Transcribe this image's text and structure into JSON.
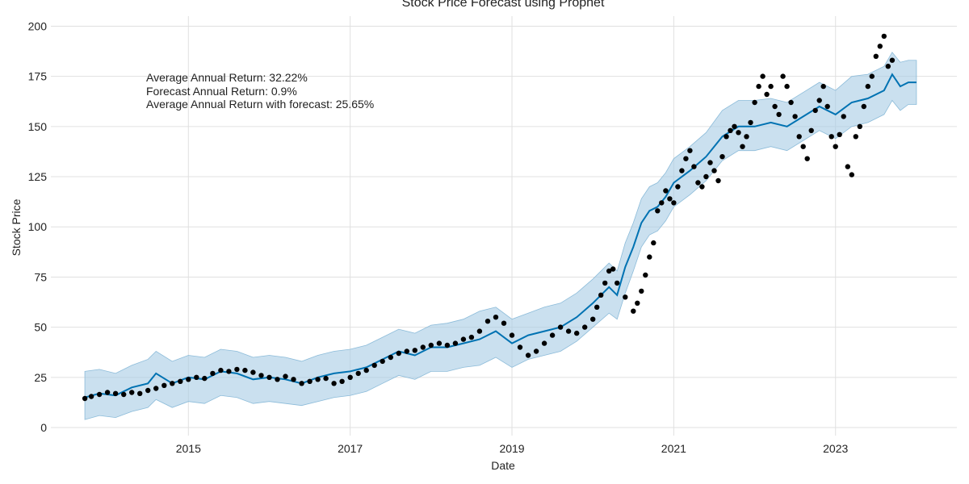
{
  "chart_data": {
    "type": "line",
    "title": "Stock Price Forecast using Prophet",
    "xlabel": "Date",
    "ylabel": "Stock Price",
    "xlim": [
      2013.3,
      2024.5
    ],
    "ylim": [
      -4,
      205
    ],
    "x_ticks": [
      2015,
      2017,
      2019,
      2021,
      2023
    ],
    "y_ticks": [
      0,
      25,
      50,
      75,
      100,
      125,
      150,
      175,
      200
    ],
    "grid": true,
    "colors": {
      "forecast": "#0072b2",
      "band": "#a6cce4",
      "actual": "#000000",
      "grid": "#e0e0e0"
    },
    "annotations": [
      "Average Annual Return: 32.22%",
      "Forecast Annual Return: 0.9%",
      "Average Annual Return with forecast: 25.65%"
    ],
    "series": [
      {
        "kind": "actual",
        "x": [
          2013.72,
          2013.8,
          2013.9,
          2014.0,
          2014.1,
          2014.2,
          2014.3,
          2014.4,
          2014.5,
          2014.6,
          2014.7,
          2014.8,
          2014.9,
          2015.0,
          2015.1,
          2015.2,
          2015.3,
          2015.4,
          2015.5,
          2015.6,
          2015.7,
          2015.8,
          2015.9,
          2016.0,
          2016.1,
          2016.2,
          2016.3,
          2016.4,
          2016.5,
          2016.6,
          2016.7,
          2016.8,
          2016.9,
          2017.0,
          2017.1,
          2017.2,
          2017.3,
          2017.4,
          2017.5,
          2017.6,
          2017.7,
          2017.8,
          2017.9,
          2018.0,
          2018.1,
          2018.2,
          2018.3,
          2018.4,
          2018.5,
          2018.6,
          2018.7,
          2018.8,
          2018.9,
          2019.0,
          2019.1,
          2019.2,
          2019.3,
          2019.4,
          2019.5,
          2019.6,
          2019.7,
          2019.8,
          2019.9,
          2020.0,
          2020.05,
          2020.1,
          2020.15,
          2020.2,
          2020.25,
          2020.3,
          2020.4,
          2020.5,
          2020.55,
          2020.6,
          2020.65,
          2020.7,
          2020.75,
          2020.8,
          2020.85,
          2020.9,
          2020.95,
          2021.0,
          2021.05,
          2021.1,
          2021.15,
          2021.2,
          2021.25,
          2021.3,
          2021.35,
          2021.4,
          2021.45,
          2021.5,
          2021.55,
          2021.6,
          2021.65,
          2021.7,
          2021.75,
          2021.8,
          2021.85,
          2021.9,
          2021.95,
          2022.0,
          2022.05,
          2022.1,
          2022.15,
          2022.2,
          2022.25,
          2022.3,
          2022.35,
          2022.4,
          2022.45,
          2022.5,
          2022.55,
          2022.6,
          2022.65,
          2022.7,
          2022.75,
          2022.8,
          2022.85,
          2022.9,
          2022.95,
          2023.0,
          2023.05,
          2023.1,
          2023.15,
          2023.2,
          2023.25,
          2023.3,
          2023.35,
          2023.4,
          2023.45,
          2023.5,
          2023.55,
          2023.6,
          2023.65,
          2023.7
        ],
        "y": [
          14.5,
          15.5,
          16.5,
          17.5,
          17,
          16.5,
          17.5,
          17,
          18.5,
          19.5,
          21,
          22,
          23,
          24,
          25,
          24.5,
          27,
          28.5,
          28,
          29,
          28.5,
          27.5,
          26,
          25,
          24,
          25.5,
          24,
          22,
          23,
          24,
          24.5,
          22,
          23,
          25,
          27,
          28.5,
          31,
          33,
          35,
          37,
          38,
          38.5,
          40,
          41,
          42,
          41,
          42,
          44,
          45,
          48,
          53,
          55,
          52,
          46,
          40,
          36,
          38,
          42,
          46,
          50,
          48,
          47,
          50,
          54,
          60,
          66,
          72,
          78,
          79,
          72,
          65,
          58,
          62,
          68,
          76,
          85,
          92,
          108,
          112,
          118,
          114,
          112,
          120,
          128,
          134,
          138,
          130,
          122,
          120,
          125,
          132,
          128,
          123,
          135,
          145,
          148,
          150,
          147,
          140,
          145,
          152,
          162,
          170,
          175,
          166,
          170,
          160,
          156,
          175,
          170,
          162,
          155,
          145,
          140,
          134,
          148,
          158,
          163,
          170,
          160,
          145,
          140,
          146,
          155,
          130,
          126,
          145,
          150,
          160,
          170,
          175,
          185,
          190,
          195,
          180,
          183
        ]
      },
      {
        "kind": "forecast",
        "x": [
          2013.72,
          2013.9,
          2014.1,
          2014.3,
          2014.5,
          2014.6,
          2014.8,
          2015.0,
          2015.2,
          2015.4,
          2015.6,
          2015.8,
          2016.0,
          2016.2,
          2016.4,
          2016.6,
          2016.8,
          2017.0,
          2017.2,
          2017.4,
          2017.6,
          2017.8,
          2018.0,
          2018.2,
          2018.4,
          2018.6,
          2018.8,
          2019.0,
          2019.2,
          2019.4,
          2019.6,
          2019.8,
          2020.0,
          2020.2,
          2020.3,
          2020.4,
          2020.5,
          2020.6,
          2020.7,
          2020.8,
          2020.9,
          2021.0,
          2021.2,
          2021.4,
          2021.6,
          2021.8,
          2022.0,
          2022.2,
          2022.4,
          2022.6,
          2022.8,
          2023.0,
          2023.2,
          2023.4,
          2023.6,
          2023.7,
          2023.8,
          2023.9,
          2024.0
        ],
        "y": [
          15,
          17,
          16,
          20,
          22,
          27,
          22,
          25,
          24,
          28,
          27,
          24,
          25,
          24,
          22,
          25,
          27,
          28,
          30,
          34,
          38,
          36,
          40,
          40,
          42,
          44,
          48,
          42,
          46,
          48,
          50,
          55,
          62,
          70,
          66,
          80,
          90,
          102,
          108,
          110,
          115,
          122,
          128,
          135,
          145,
          150,
          150,
          152,
          150,
          155,
          160,
          156,
          162,
          164,
          168,
          176,
          170,
          172,
          172
        ]
      },
      {
        "kind": "band_upper",
        "x": [
          2013.72,
          2013.9,
          2014.1,
          2014.3,
          2014.5,
          2014.6,
          2014.8,
          2015.0,
          2015.2,
          2015.4,
          2015.6,
          2015.8,
          2016.0,
          2016.2,
          2016.4,
          2016.6,
          2016.8,
          2017.0,
          2017.2,
          2017.4,
          2017.6,
          2017.8,
          2018.0,
          2018.2,
          2018.4,
          2018.6,
          2018.8,
          2019.0,
          2019.2,
          2019.4,
          2019.6,
          2019.8,
          2020.0,
          2020.2,
          2020.3,
          2020.4,
          2020.5,
          2020.6,
          2020.7,
          2020.8,
          2020.9,
          2021.0,
          2021.2,
          2021.4,
          2021.6,
          2021.8,
          2022.0,
          2022.2,
          2022.4,
          2022.6,
          2022.8,
          2023.0,
          2023.2,
          2023.4,
          2023.6,
          2023.7,
          2023.8,
          2023.9,
          2024.0
        ],
        "y": [
          28,
          29,
          27,
          31,
          34,
          38,
          33,
          36,
          35,
          39,
          38,
          35,
          36,
          35,
          33,
          36,
          38,
          39,
          41,
          45,
          49,
          47,
          51,
          52,
          54,
          58,
          60,
          54,
          57,
          60,
          62,
          67,
          74,
          82,
          78,
          92,
          102,
          114,
          120,
          122,
          127,
          134,
          140,
          147,
          158,
          163,
          163,
          164,
          162,
          167,
          172,
          168,
          175,
          176,
          180,
          187,
          182,
          183,
          183
        ]
      },
      {
        "kind": "band_lower",
        "x": [
          2013.72,
          2013.9,
          2014.1,
          2014.3,
          2014.5,
          2014.6,
          2014.8,
          2015.0,
          2015.2,
          2015.4,
          2015.6,
          2015.8,
          2016.0,
          2016.2,
          2016.4,
          2016.6,
          2016.8,
          2017.0,
          2017.2,
          2017.4,
          2017.6,
          2017.8,
          2018.0,
          2018.2,
          2018.4,
          2018.6,
          2018.8,
          2019.0,
          2019.2,
          2019.4,
          2019.6,
          2019.8,
          2020.0,
          2020.2,
          2020.3,
          2020.4,
          2020.5,
          2020.6,
          2020.7,
          2020.8,
          2020.9,
          2021.0,
          2021.2,
          2021.4,
          2021.6,
          2021.8,
          2022.0,
          2022.2,
          2022.4,
          2022.6,
          2022.8,
          2023.0,
          2023.2,
          2023.4,
          2023.6,
          2023.7,
          2023.8,
          2023.9,
          2024.0
        ],
        "y": [
          4,
          6,
          5,
          8,
          10,
          14,
          10,
          13,
          12,
          16,
          15,
          12,
          13,
          12,
          11,
          13,
          15,
          16,
          18,
          22,
          26,
          24,
          28,
          28,
          30,
          31,
          35,
          30,
          34,
          36,
          38,
          43,
          50,
          57,
          54,
          67,
          78,
          90,
          96,
          98,
          103,
          110,
          116,
          123,
          133,
          138,
          138,
          140,
          138,
          143,
          148,
          144,
          150,
          152,
          156,
          163,
          158,
          161,
          161
        ]
      }
    ]
  }
}
